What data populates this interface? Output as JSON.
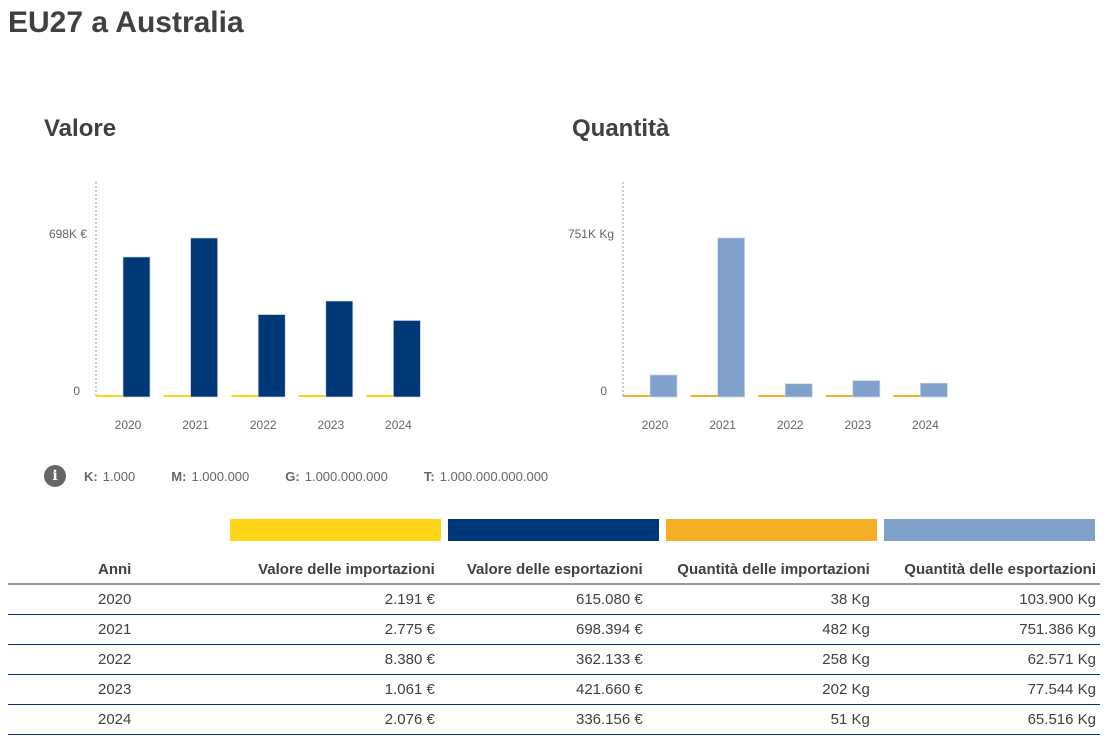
{
  "title": "EU27 a Australia",
  "colors": {
    "import_value": "#FFD617",
    "export_value": "#003776",
    "import_qty": "#F5AE25",
    "export_qty": "#7FA1CA"
  },
  "chart_data": [
    {
      "type": "bar",
      "title": "Valore",
      "categories": [
        "2020",
        "2021",
        "2022",
        "2023",
        "2024"
      ],
      "series": [
        {
          "name": "Valore delle importazioni",
          "values": [
            2191,
            2775,
            8380,
            1061,
            2076
          ]
        },
        {
          "name": "Valore delle esportazioni",
          "values": [
            615080,
            698394,
            362133,
            421660,
            336156
          ]
        }
      ],
      "ylim": [
        0,
        698394
      ],
      "yticks": [
        "0",
        "698K €"
      ]
    },
    {
      "type": "bar",
      "title": "Quantità",
      "categories": [
        "2020",
        "2021",
        "2022",
        "2023",
        "2024"
      ],
      "series": [
        {
          "name": "Quantità delle importazioni",
          "values": [
            38,
            482,
            258,
            202,
            51
          ]
        },
        {
          "name": "Quantità delle esportazioni",
          "values": [
            103900,
            751386,
            62571,
            77544,
            65516
          ]
        }
      ],
      "ylim": [
        0,
        751386
      ],
      "yticks": [
        "0",
        "751K Kg"
      ]
    }
  ],
  "legend": {
    "icon": "info-icon",
    "items": [
      {
        "k": "K:",
        "v": "1.000"
      },
      {
        "k": "M:",
        "v": "1.000.000"
      },
      {
        "k": "G:",
        "v": "1.000.000.000"
      },
      {
        "k": "T:",
        "v": "1.000.000.000.000"
      }
    ]
  },
  "table": {
    "headers": [
      "Anni",
      "Valore delle importazioni",
      "Valore delle esportazioni",
      "Quantità delle importazioni",
      "Quantità delle esportazioni"
    ],
    "rows": [
      [
        "2020",
        "2.191 €",
        "615.080 €",
        "38 Kg",
        "103.900 Kg"
      ],
      [
        "2021",
        "2.775 €",
        "698.394 €",
        "482 Kg",
        "751.386 Kg"
      ],
      [
        "2022",
        "8.380 €",
        "362.133 €",
        "258 Kg",
        "62.571 Kg"
      ],
      [
        "2023",
        "1.061 €",
        "421.660 €",
        "202 Kg",
        "77.544 Kg"
      ],
      [
        "2024",
        "2.076 €",
        "336.156 €",
        "51 Kg",
        "65.516 Kg"
      ]
    ]
  }
}
